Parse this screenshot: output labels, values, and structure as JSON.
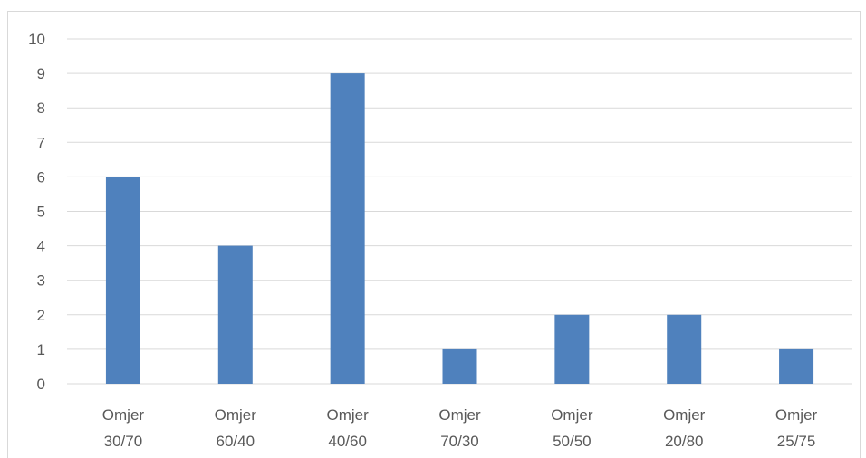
{
  "chart_data": {
    "type": "bar",
    "categories": [
      [
        "Omjer",
        "30/70"
      ],
      [
        "Omjer",
        "60/40"
      ],
      [
        "Omjer",
        "40/60"
      ],
      [
        "Omjer",
        "70/30"
      ],
      [
        "Omjer",
        "50/50"
      ],
      [
        "Omjer",
        "20/80"
      ],
      [
        "Omjer",
        "25/75"
      ]
    ],
    "values": [
      6,
      4,
      9,
      1,
      2,
      2,
      1
    ],
    "title": "",
    "xlabel": "",
    "ylabel": "",
    "ylim": [
      0,
      10
    ],
    "yticks": [
      "0",
      "1",
      "2",
      "3",
      "4",
      "5",
      "6",
      "7",
      "8",
      "9",
      "10"
    ],
    "grid": true,
    "legend": "none",
    "colors": {
      "bar": "#4F81BD",
      "grid": "#d9d9d9",
      "text": "#595959"
    }
  }
}
